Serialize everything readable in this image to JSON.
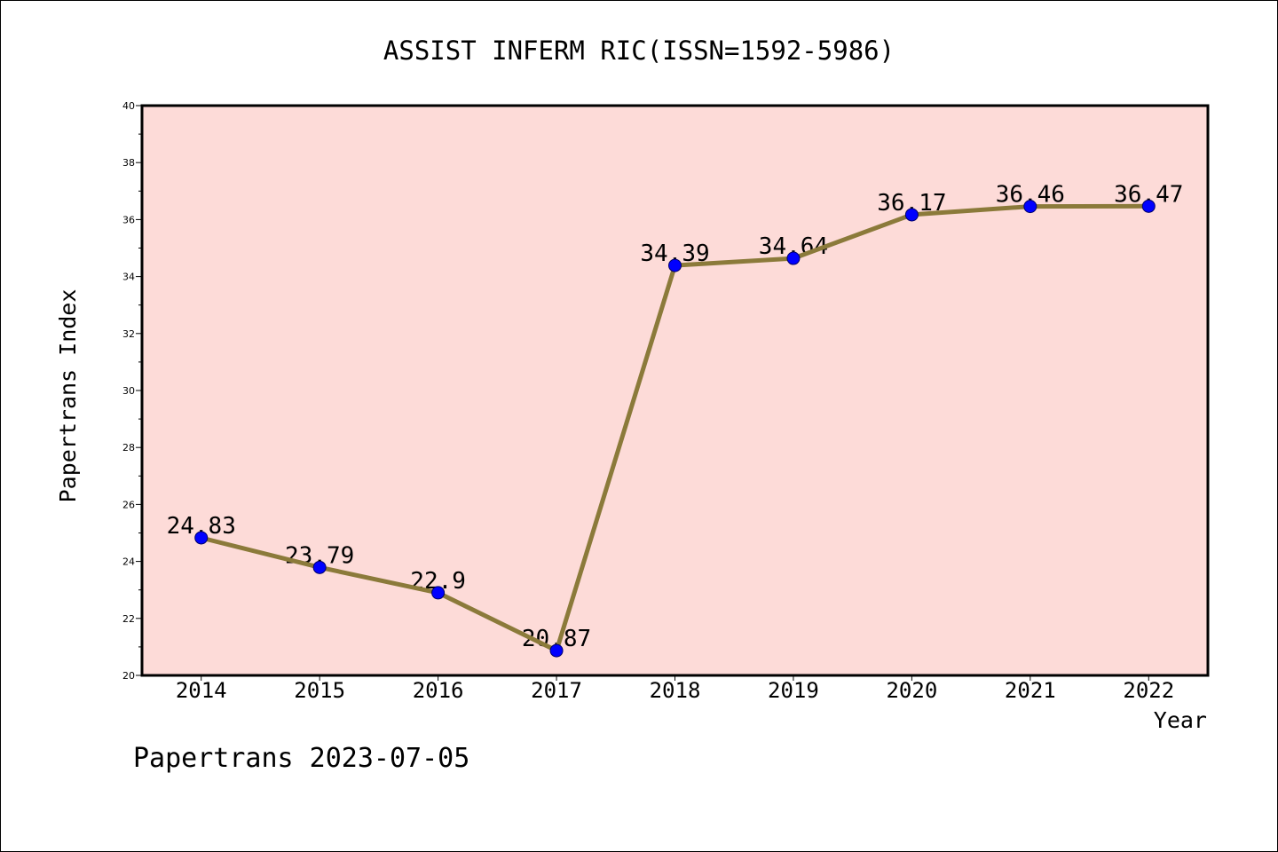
{
  "chart_data": {
    "type": "line",
    "title": "ASSIST INFERM RIC(ISSN=1592-5986)",
    "xlabel": "Year",
    "ylabel": "Papertrans Index",
    "x": [
      2014,
      2015,
      2016,
      2017,
      2018,
      2019,
      2020,
      2021,
      2022
    ],
    "series": [
      {
        "values": [
          24.83,
          23.79,
          22.9,
          20.87,
          34.39,
          34.64,
          36.17,
          36.46,
          36.47
        ],
        "color": "#8B7A3A",
        "marker_color": "#0000FF"
      }
    ],
    "xlim": [
      2013.5,
      2022.5
    ],
    "ylim": [
      20,
      40
    ],
    "yticks": [
      20,
      22,
      24,
      26,
      28,
      30,
      32,
      34,
      36,
      38,
      40
    ],
    "data_labels": true,
    "grid": false,
    "plot_background": "#FDDBD8"
  },
  "footer": "Papertrans 2023-07-05"
}
